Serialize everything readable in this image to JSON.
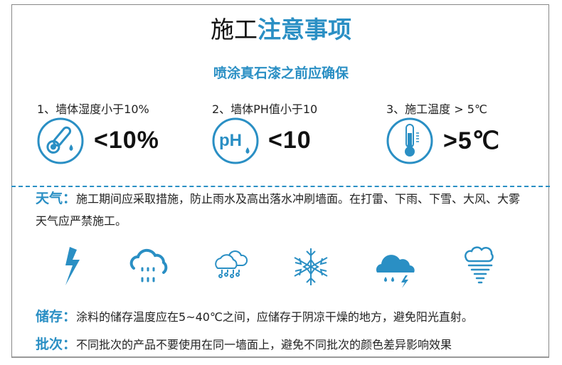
{
  "header": {
    "title_black": "施工",
    "title_blue": "注意事项",
    "subtitle": "喷涂真石漆之前应确保"
  },
  "requirements": [
    {
      "label": "1、墙体湿度小于10%",
      "value": "<10%",
      "icon": "thermometer-humidity-icon"
    },
    {
      "label": "2、墙体PH值小于10",
      "value": "<10",
      "icon": "ph-drop-icon",
      "icon_text": "pH"
    },
    {
      "label": "3、施工温度 > 5℃",
      "value": ">5℃",
      "icon": "thermometer-icon"
    }
  ],
  "weather": {
    "label": "天气：",
    "text": "施工期间应采取措施，防止雨水及高出落水冲刷墙面。在打雷、下雨、下雪、大风、大雾天气应严禁施工。",
    "icons": [
      "lightning-icon",
      "rain-cloud-icon",
      "hail-cloud-icon",
      "snowflake-icon",
      "thunderstorm-icon",
      "tornado-icon"
    ]
  },
  "storage": {
    "label": "储存：",
    "text": "涂料的储存温度应在5~40℃之间，应储存于阴凉干燥的地方，避免阳光直射。"
  },
  "batch": {
    "label": "批次：",
    "text": "不同批次的产品不要使用在同一墙面上，避免不同批次的颜色差异影响效果"
  },
  "colors": {
    "accent": "#2a8fc4",
    "text": "#222222"
  }
}
